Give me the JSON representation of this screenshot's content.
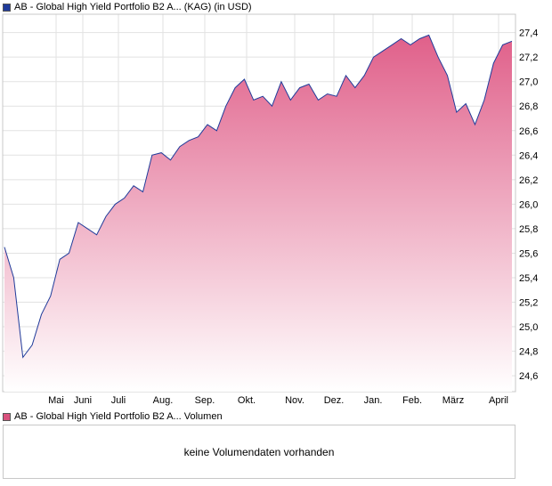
{
  "price_legend": {
    "label": "AB - Global High Yield Portfolio B2 A... (KAG) (in USD)",
    "color": "#1f3b9a"
  },
  "volume_legend": {
    "label": "AB - Global High Yield Portfolio B2 A... Volumen",
    "color": "#d9517d"
  },
  "volume_panel": {
    "message": "keine Volumendaten vorhanden"
  },
  "chart_data": {
    "type": "area",
    "title": "AB - Global High Yield Portfolio B2 A... (KAG) (in USD)",
    "x_ticks": [
      "Mai",
      "Juni",
      "Juli",
      "Aug.",
      "Sep.",
      "Okt.",
      "Nov.",
      "Dez.",
      "Jan.",
      "Feb.",
      "März",
      "April"
    ],
    "y_ticks": [
      24.6,
      24.8,
      25.0,
      25.2,
      25.4,
      25.6,
      25.8,
      26.0,
      26.2,
      26.4,
      26.6,
      26.8,
      27.0,
      27.2,
      27.4
    ],
    "y_tick_labels": [
      "24,6",
      "24,8",
      "25,0",
      "25,2",
      "25,4",
      "25,6",
      "25,8",
      "26,0",
      "26,2",
      "26,4",
      "26,6",
      "26,8",
      "27,0",
      "27,2",
      "27,4"
    ],
    "ylim": [
      24.47,
      27.55
    ],
    "grid": true,
    "line_color": "#1f3b9a",
    "fill_top_color": "#e0608a",
    "fill_bottom_color": "#ffffff",
    "series": [
      {
        "x": [
          "Apr",
          "Apr",
          "Apr",
          "Apr",
          "Apr",
          "Apr",
          "Mai",
          "Mai",
          "Mai",
          "Mai",
          "Mai",
          "Mai",
          "Juni",
          "Juni",
          "Juni",
          "Juni",
          "Juli",
          "Juli",
          "Juli",
          "Juli",
          "Aug.",
          "Aug.",
          "Aug.",
          "Aug.",
          "Sep.",
          "Sep.",
          "Sep.",
          "Sep.",
          "Okt.",
          "Okt.",
          "Okt.",
          "Okt.",
          "Okt.",
          "Nov.",
          "Nov.",
          "Nov.",
          "Nov.",
          "Dez.",
          "Dez.",
          "Dez.",
          "Jan.",
          "Jan.",
          "Jan.",
          "Feb.",
          "Feb.",
          "Feb.",
          "Feb.",
          "März",
          "März",
          "März",
          "März",
          "März",
          "April",
          "April",
          "April",
          "April"
        ],
        "values": [
          25.65,
          25.4,
          24.75,
          24.85,
          25.1,
          25.25,
          25.55,
          25.6,
          25.85,
          25.8,
          25.75,
          25.9,
          26.0,
          26.05,
          26.15,
          26.1,
          26.4,
          26.42,
          26.36,
          26.47,
          26.52,
          26.55,
          26.65,
          26.6,
          26.8,
          26.95,
          27.02,
          26.85,
          26.88,
          26.8,
          27.0,
          26.85,
          26.95,
          26.98,
          26.85,
          26.9,
          26.88,
          27.05,
          26.95,
          27.05,
          27.2,
          27.25,
          27.3,
          27.35,
          27.3,
          27.35,
          27.38,
          27.2,
          27.05,
          26.75,
          26.82,
          26.65,
          26.85,
          27.15,
          27.3,
          27.33
        ],
        "name": ""
      }
    ]
  },
  "volume_chart": {
    "type": "bar",
    "series": []
  }
}
